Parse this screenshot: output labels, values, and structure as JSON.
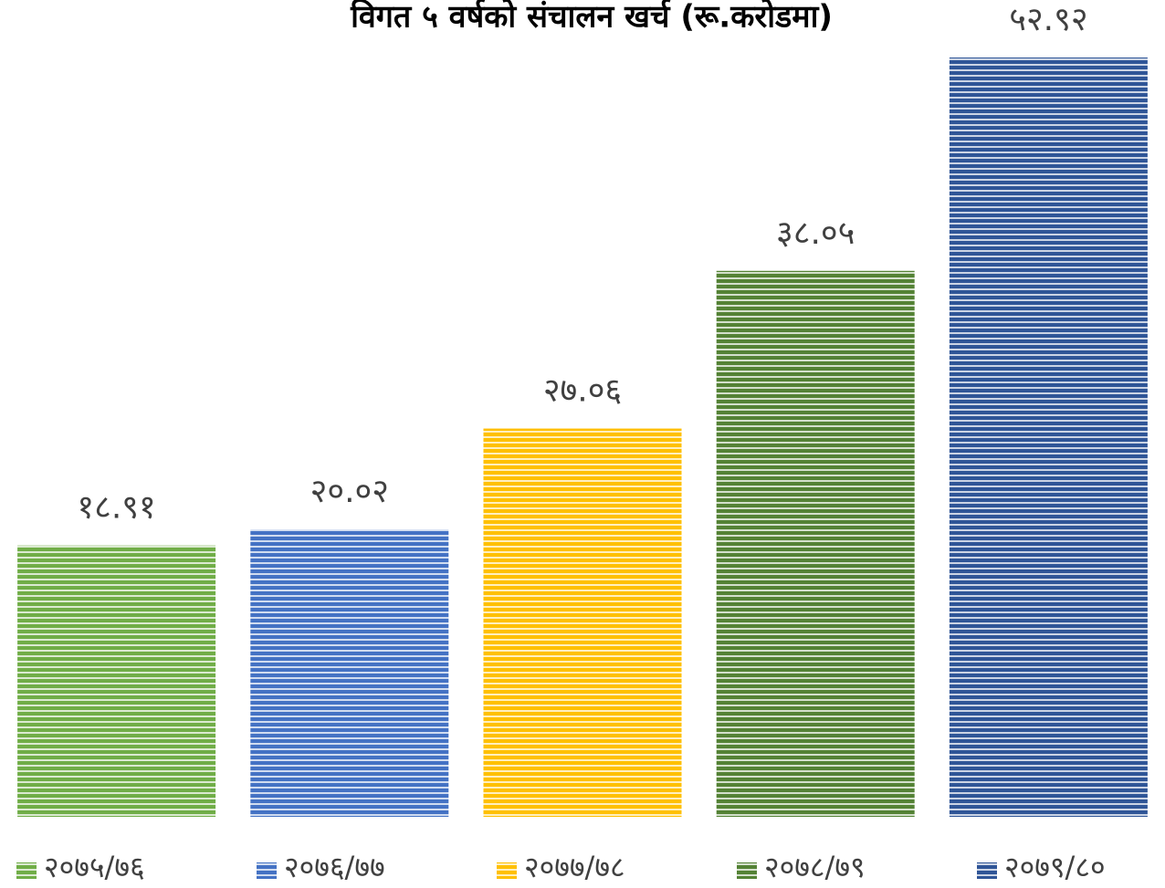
{
  "chart_data": {
    "type": "bar",
    "title": "विगत ५ वर्षको संचालन खर्च (रू.करोडमा)",
    "series": [
      {
        "name": "२०७५/७६",
        "color": "#70ad47",
        "values": [
          18.91
        ],
        "value_labels": [
          "१८.९१"
        ]
      },
      {
        "name": "२०७६/७७",
        "color": "#4472c4",
        "values": [
          20.02
        ],
        "value_labels": [
          "२०.०२"
        ]
      },
      {
        "name": "२०७७/७८",
        "color": "#ffc000",
        "values": [
          27.06
        ],
        "value_labels": [
          "२७.०६"
        ]
      },
      {
        "name": "२०७८/७९",
        "color": "#548235",
        "values": [
          38.05
        ],
        "value_labels": [
          "३८.०५"
        ]
      },
      {
        "name": "२०७९/८०",
        "color": "#2f5597",
        "values": [
          52.92
        ],
        "value_labels": [
          "५२.९२"
        ]
      }
    ],
    "legend": "bottom"
  }
}
